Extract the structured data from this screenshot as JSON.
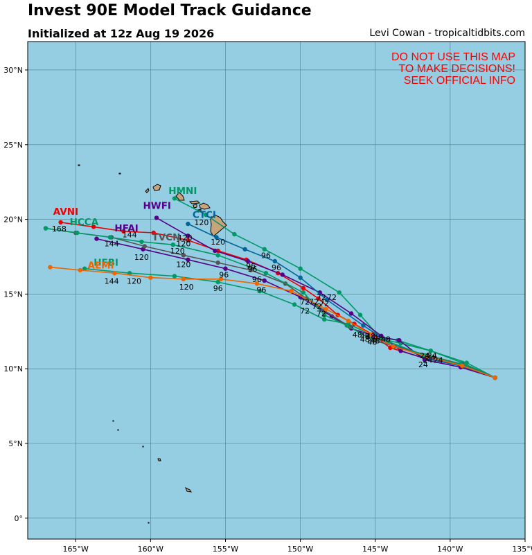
{
  "title": "Invest 90E Model Track Guidance",
  "subtitle": "Initialized at 12z Aug 19 2026",
  "credit": "Levi Cowan - tropicaltidbits.com",
  "warning": [
    "DO NOT USE THIS MAP",
    "TO MAKE DECISIONS!",
    "SEEK OFFICIAL INFO"
  ],
  "colors": {
    "ocean": "#95cde3",
    "land": "#c8a47a",
    "grid": "#4a7f8c",
    "warning": "#ff0000"
  },
  "axes": {
    "lon_range": [
      -168.2,
      -135
    ],
    "lat_range": [
      -1.4,
      31.9
    ],
    "lon_ticks": [
      -165,
      -160,
      -155,
      -150,
      -145,
      -140,
      -135
    ],
    "lon_labels": [
      "165°W",
      "160°W",
      "155°W",
      "150°W",
      "145°W",
      "140°W",
      "135°W"
    ],
    "lat_ticks": [
      0,
      5,
      10,
      15,
      20,
      25,
      30
    ],
    "lat_labels": [
      "0°",
      "5°N",
      "10°N",
      "15°N",
      "20°N",
      "25°N",
      "30°N"
    ],
    "grid": true
  },
  "models": [
    {
      "name": "AVNI",
      "color": "#ee0000",
      "points": [
        [
          -137,
          9.4
        ],
        [
          -139.3,
          10.3
        ],
        [
          -141.7,
          10.7
        ],
        [
          -144,
          11.4
        ],
        [
          -145.2,
          12.3
        ],
        [
          -146.4,
          13
        ],
        [
          -147.5,
          13.6
        ],
        [
          -148.8,
          14.7
        ],
        [
          -149.8,
          15.4
        ],
        [
          -151.5,
          16.4
        ],
        [
          -153.6,
          17.3
        ],
        [
          -155.5,
          17.9
        ],
        [
          -157.5,
          18.6
        ],
        [
          -159.8,
          19.1
        ],
        [
          -161.8,
          19.2
        ],
        [
          -163.8,
          19.5
        ],
        [
          -166,
          19.8
        ]
      ]
    },
    {
      "name": "HMNI",
      "color": "#009966",
      "points": [
        [
          -137,
          9.4
        ],
        [
          -139.2,
          10.4
        ],
        [
          -141.3,
          11.2
        ],
        [
          -143.3,
          11.7
        ],
        [
          -144.6,
          12
        ],
        [
          -146,
          13.6
        ],
        [
          -147.4,
          15.1
        ],
        [
          -150,
          16.7
        ],
        [
          -152.4,
          18
        ],
        [
          -154.4,
          19
        ],
        [
          -156.3,
          20.3
        ],
        [
          -158.4,
          21.4
        ]
      ]
    },
    {
      "name": "HWFI",
      "color": "#550088",
      "points": [
        [
          -137,
          9.4
        ],
        [
          -139.3,
          10.2
        ],
        [
          -141.7,
          10.7
        ],
        [
          -143.3,
          11.2
        ],
        [
          -144.6,
          12.2
        ],
        [
          -146.6,
          13.7
        ],
        [
          -148.7,
          15.1
        ],
        [
          -151.2,
          16.3
        ],
        [
          -153.5,
          17.2
        ],
        [
          -155.7,
          17.9
        ],
        [
          -157.5,
          18.9
        ],
        [
          -159.6,
          20.1
        ]
      ]
    },
    {
      "name": "CTCI",
      "color": "#006699",
      "points": [
        [
          -137,
          9.4
        ],
        [
          -139.3,
          10.2
        ],
        [
          -141.6,
          10.7
        ],
        [
          -144.3,
          11.9
        ],
        [
          -145.8,
          12.9
        ],
        [
          -148.2,
          14.6
        ],
        [
          -150,
          16.1
        ],
        [
          -151.7,
          17.2
        ],
        [
          -153.7,
          18
        ],
        [
          -155.6,
          18.8
        ],
        [
          -157.5,
          19.7
        ]
      ]
    },
    {
      "name": "HCCA",
      "color": "#009966",
      "points": [
        [
          -137,
          9.4
        ],
        [
          -138.9,
          10.4
        ],
        [
          -141.3,
          11.2
        ],
        [
          -143.5,
          11.9
        ],
        [
          -145.1,
          12.2
        ],
        [
          -146.8,
          13
        ],
        [
          -148.4,
          13.3
        ],
        [
          -150.4,
          14.3
        ],
        [
          -152.7,
          15.2
        ],
        [
          -155.5,
          15.8
        ],
        [
          -158.4,
          16.2
        ],
        [
          -161.4,
          16.4
        ],
        [
          -164.4,
          16.7
        ]
      ]
    },
    {
      "name": "HFAI",
      "color": "#550088",
      "points": [
        [
          -137,
          9.4
        ],
        [
          -139.3,
          10.1
        ],
        [
          -141.7,
          10.6
        ],
        [
          -143.4,
          11.9
        ],
        [
          -145.1,
          12.2
        ],
        [
          -146.6,
          12.7
        ],
        [
          -147.9,
          13.5
        ],
        [
          -150,
          14.8
        ],
        [
          -152.4,
          15.9
        ],
        [
          -155,
          16.7
        ],
        [
          -157.5,
          17.3
        ],
        [
          -160.5,
          18
        ],
        [
          -163.6,
          18.7
        ]
      ]
    },
    {
      "name": "TVCN",
      "color": "#555555",
      "points": [
        [
          -137,
          9.4
        ],
        [
          -139.2,
          10.3
        ],
        [
          -141.5,
          10.9
        ],
        [
          -143.7,
          11.5
        ],
        [
          -145.1,
          11.9
        ],
        [
          -146.7,
          12.8
        ],
        [
          -148.4,
          13.9
        ],
        [
          -149.6,
          14.7
        ],
        [
          -151,
          15.7
        ],
        [
          -153.3,
          16.6
        ],
        [
          -155.5,
          17.1
        ],
        [
          -157.8,
          17.6
        ],
        [
          -160.4,
          18.2
        ],
        [
          -162.6,
          18.8
        ],
        [
          -165,
          19.1
        ],
        [
          -167,
          19.4
        ]
      ]
    },
    {
      "name": "HFBI",
      "color": "#009966",
      "points": [
        [
          -137,
          9.4
        ],
        [
          -139.3,
          10.3
        ],
        [
          -141.7,
          10.9
        ],
        [
          -144.1,
          11.8
        ],
        [
          -145.5,
          12.1
        ],
        [
          -146.9,
          12.9
        ],
        [
          -148.4,
          13.6
        ],
        [
          -149.8,
          15.1
        ],
        [
          -152.3,
          16.4
        ],
        [
          -155.5,
          17.6
        ],
        [
          -158.5,
          18.3
        ],
        [
          -160.6,
          18.5
        ],
        [
          -162.7,
          18.8
        ],
        [
          -164.9,
          19.1
        ],
        [
          -167,
          19.4
        ]
      ]
    },
    {
      "name": "AEMI",
      "color": "#ee6600",
      "points": [
        [
          -137,
          9.4
        ],
        [
          -139.2,
          10.2
        ],
        [
          -141.5,
          10.8
        ],
        [
          -143.8,
          11.5
        ],
        [
          -145.3,
          12.3
        ],
        [
          -146.8,
          13.2
        ],
        [
          -148.3,
          14
        ],
        [
          -150.6,
          15.2
        ],
        [
          -152.9,
          15.7
        ],
        [
          -155.3,
          16
        ],
        [
          -157.8,
          16
        ],
        [
          -160,
          16.1
        ],
        [
          -162.4,
          16.4
        ],
        [
          -164.7,
          16.6
        ],
        [
          -166.7,
          16.8
        ]
      ]
    }
  ],
  "model_labels": [
    {
      "text": "AVNI",
      "color": "#ee0000",
      "lon": -166.5,
      "lat": 20.3
    },
    {
      "text": "HMNI",
      "color": "#009966",
      "lon": -158.8,
      "lat": 21.7
    },
    {
      "text": "HWFI",
      "color": "#550088",
      "lon": -160.5,
      "lat": 20.7
    },
    {
      "text": "CTCI",
      "color": "#006699",
      "lon": -157.2,
      "lat": 20.1
    },
    {
      "text": "HCCA",
      "color": "#009966",
      "lon": -165.4,
      "lat": 19.6
    },
    {
      "text": "HFAI",
      "color": "#550088",
      "lon": -162.4,
      "lat": 19.2
    },
    {
      "text": "TVCN",
      "color": "#555555",
      "lon": -159.9,
      "lat": 18.6
    },
    {
      "text": "HFBI",
      "color": "#009966",
      "lon": -163.8,
      "lat": 16.9
    },
    {
      "text": "AEMI",
      "color": "#ee6600",
      "lon": -164.2,
      "lat": 16.7
    }
  ],
  "hour_labels": [
    {
      "text": "168",
      "lon": -166.1,
      "lat": 19.2
    },
    {
      "text": "144",
      "lon": -162.6,
      "lat": 18.2
    },
    {
      "text": "144",
      "lon": -161.4,
      "lat": 18.8
    },
    {
      "text": "144",
      "lon": -162.6,
      "lat": 15.7
    },
    {
      "text": "120",
      "lon": -161.1,
      "lat": 15.7
    },
    {
      "text": "120",
      "lon": -156.6,
      "lat": 19.6
    },
    {
      "text": "120",
      "lon": -155.5,
      "lat": 18.3
    },
    {
      "text": "120",
      "lon": -157.7,
      "lat": 18.6
    },
    {
      "text": "120",
      "lon": -157.8,
      "lat": 18.2
    },
    {
      "text": "120",
      "lon": -160.6,
      "lat": 17.3
    },
    {
      "text": "120",
      "lon": -158.2,
      "lat": 17.7
    },
    {
      "text": "120",
      "lon": -157.8,
      "lat": 16.8
    },
    {
      "text": "120",
      "lon": -157.6,
      "lat": 15.3
    },
    {
      "text": "96",
      "lon": -152.3,
      "lat": 17.4
    },
    {
      "text": "96",
      "lon": -151.6,
      "lat": 16.6
    },
    {
      "text": "96",
      "lon": -153.3,
      "lat": 16.7
    },
    {
      "text": "96",
      "lon": -153.2,
      "lat": 16.5
    },
    {
      "text": "96",
      "lon": -155.1,
      "lat": 16.1
    },
    {
      "text": "96",
      "lon": -152.9,
      "lat": 15.8
    },
    {
      "text": "96",
      "lon": -155.5,
      "lat": 15.2
    },
    {
      "text": "96",
      "lon": -152.6,
      "lat": 15.1
    },
    {
      "text": "72",
      "lon": -149.7,
      "lat": 14.3
    },
    {
      "text": "72",
      "lon": -149.1,
      "lat": 14.3
    },
    {
      "text": "72",
      "lon": -148.6,
      "lat": 14.6
    },
    {
      "text": "72",
      "lon": -147.9,
      "lat": 14.6
    },
    {
      "text": "72",
      "lon": -148.4,
      "lat": 14.2
    },
    {
      "text": "72",
      "lon": -148.9,
      "lat": 14.0
    },
    {
      "text": "72",
      "lon": -149.7,
      "lat": 13.7
    },
    {
      "text": "72",
      "lon": -148.6,
      "lat": 13.5
    },
    {
      "text": "48",
      "lon": -146.2,
      "lat": 12.1
    },
    {
      "text": "48",
      "lon": -145.7,
      "lat": 12.0
    },
    {
      "text": "48",
      "lon": -145.3,
      "lat": 12.0
    },
    {
      "text": "48",
      "lon": -144.8,
      "lat": 11.9
    },
    {
      "text": "48",
      "lon": -145.7,
      "lat": 11.8
    },
    {
      "text": "48",
      "lon": -145.0,
      "lat": 11.7
    },
    {
      "text": "48",
      "lon": -144.3,
      "lat": 11.8
    },
    {
      "text": "48",
      "lon": -145.2,
      "lat": 11.6
    },
    {
      "text": "24",
      "lon": -141.7,
      "lat": 10.7
    },
    {
      "text": "24",
      "lon": -141.2,
      "lat": 10.7
    },
    {
      "text": "24",
      "lon": -141.5,
      "lat": 10.4
    },
    {
      "text": "24",
      "lon": -140.8,
      "lat": 10.4
    },
    {
      "text": "24",
      "lon": -141.8,
      "lat": 10.1
    },
    {
      "text": "24",
      "lon": -141.3,
      "lat": 10.6
    }
  ]
}
